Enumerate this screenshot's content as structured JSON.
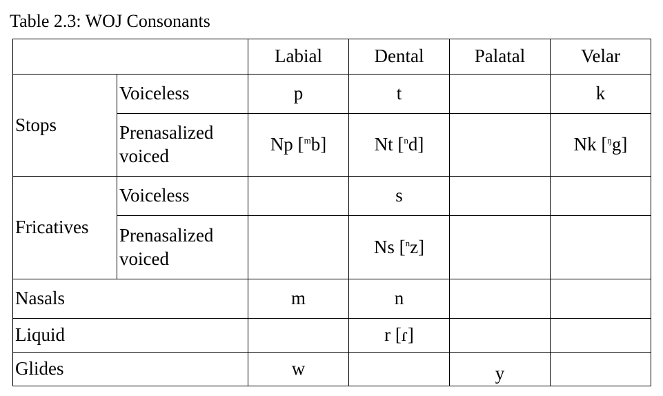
{
  "caption": "Table 2.3: WOJ Consonants",
  "columns": [
    "Labial",
    "Dental",
    "Palatal",
    "Velar"
  ],
  "stops": {
    "label": "Stops",
    "voiceless": {
      "label": "Voiceless",
      "cells": [
        "p",
        "t",
        "",
        "k"
      ]
    },
    "prenasalized": {
      "label_line1": "Prenasalized",
      "label_line2": "voiced",
      "labial_base": "Np [",
      "labial_sup": "m",
      "labial_tail": "b]",
      "dental_base": "Nt [",
      "dental_sup": "n",
      "dental_tail": "d]",
      "velar_base": "Nk [",
      "velar_sup": "ŋ",
      "velar_tail": "g]"
    }
  },
  "fricatives": {
    "label": "Fricatives",
    "voiceless": {
      "label": "Voiceless",
      "cells": [
        "",
        "s",
        "",
        ""
      ]
    },
    "prenasalized": {
      "label_line1": "Prenasalized",
      "label_line2": "voiced",
      "dental_base": "Ns [",
      "dental_sup": "n",
      "dental_tail": "z]"
    }
  },
  "nasals": {
    "label": "Nasals",
    "cells": [
      "m",
      "n",
      "",
      ""
    ]
  },
  "liquid": {
    "label": "Liquid",
    "cells": [
      "",
      "r [ɾ]",
      "",
      ""
    ]
  },
  "glides": {
    "label": "Glides",
    "cells": [
      "w",
      "",
      "y",
      ""
    ]
  }
}
